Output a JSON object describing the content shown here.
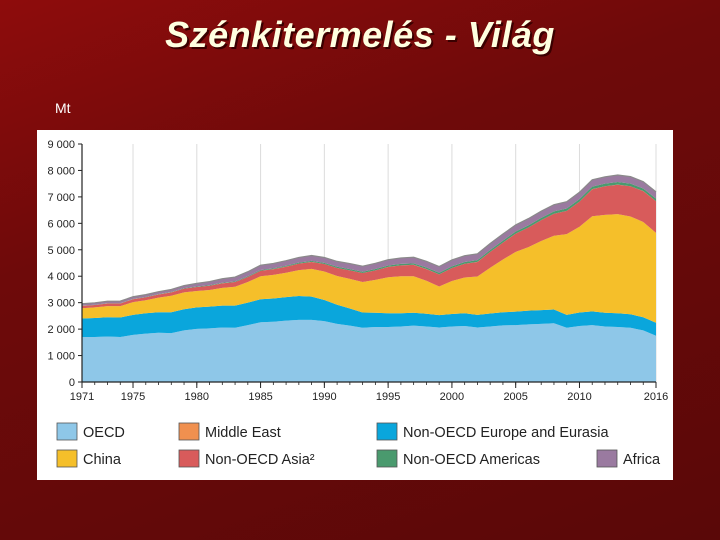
{
  "slide": {
    "title": "Szénkitermelés - Világ",
    "unit": "Mt"
  },
  "chart_data": {
    "type": "area",
    "stacked": true,
    "ylim": [
      0,
      9000
    ],
    "yticks": [
      0,
      1000,
      2000,
      3000,
      4000,
      5000,
      6000,
      7000,
      8000,
      9000
    ],
    "ytick_labels": [
      "0",
      "1 000",
      "2 000",
      "3 000",
      "4 000",
      "5 000",
      "6 000",
      "7 000",
      "8 000",
      "9 000"
    ],
    "xlim": [
      1971,
      2016
    ],
    "xticks": [
      1971,
      1975,
      1980,
      1985,
      1990,
      1995,
      2000,
      2005,
      2010,
      2016
    ],
    "xtick_labels": [
      "1971",
      "1975",
      "1980",
      "1985",
      "1990",
      "1995",
      "2000",
      "2005",
      "2010",
      "2016"
    ],
    "grid": "vertical",
    "legend_position": "bottom",
    "x": [
      1971,
      1972,
      1973,
      1974,
      1975,
      1976,
      1977,
      1978,
      1979,
      1980,
      1981,
      1982,
      1983,
      1984,
      1985,
      1986,
      1987,
      1988,
      1989,
      1990,
      1991,
      1992,
      1993,
      1994,
      1995,
      1996,
      1997,
      1998,
      1999,
      2000,
      2001,
      2002,
      2003,
      2004,
      2005,
      2006,
      2007,
      2008,
      2009,
      2010,
      2011,
      2012,
      2013,
      2014,
      2015,
      2016
    ],
    "series": [
      {
        "name": "OECD",
        "color": "#8ec7e8",
        "values": [
          1700,
          1700,
          1720,
          1700,
          1780,
          1830,
          1860,
          1850,
          1950,
          2010,
          2030,
          2060,
          2050,
          2150,
          2260,
          2280,
          2320,
          2350,
          2350,
          2300,
          2200,
          2130,
          2050,
          2080,
          2080,
          2100,
          2130,
          2100,
          2060,
          2100,
          2120,
          2060,
          2100,
          2140,
          2150,
          2180,
          2200,
          2220,
          2050,
          2120,
          2150,
          2100,
          2080,
          2050,
          1950,
          1750
        ]
      },
      {
        "name": "Non-OECD Europe and Eurasia",
        "color": "#0aa6dc",
        "values": [
          700,
          720,
          730,
          740,
          760,
          770,
          780,
          790,
          800,
          810,
          820,
          830,
          840,
          850,
          870,
          880,
          890,
          900,
          880,
          800,
          720,
          650,
          580,
          540,
          520,
          500,
          490,
          480,
          470,
          470,
          480,
          480,
          490,
          500,
          510,
          520,
          520,
          520,
          490,
          510,
          520,
          520,
          520,
          510,
          500,
          490
        ]
      },
      {
        "name": "China",
        "color": "#f5bf2a",
        "values": [
          390,
          400,
          420,
          430,
          480,
          490,
          550,
          620,
          640,
          620,
          630,
          670,
          710,
          780,
          870,
          890,
          920,
          980,
          1050,
          1080,
          1090,
          1120,
          1150,
          1240,
          1360,
          1400,
          1380,
          1250,
          1080,
          1250,
          1350,
          1450,
          1730,
          1990,
          2260,
          2400,
          2610,
          2790,
          3050,
          3240,
          3600,
          3700,
          3750,
          3700,
          3600,
          3400
        ]
      },
      {
        "name": "Non-OECD Asia²",
        "color": "#d85b5b",
        "values": [
          90,
          90,
          100,
          100,
          110,
          115,
          120,
          130,
          140,
          150,
          160,
          170,
          180,
          190,
          205,
          215,
          230,
          245,
          260,
          280,
          300,
          320,
          340,
          360,
          390,
          410,
          430,
          440,
          460,
          490,
          520,
          550,
          600,
          640,
          690,
          740,
          790,
          830,
          880,
          950,
          1020,
          1080,
          1110,
          1140,
          1170,
          1200
        ]
      },
      {
        "name": "Middle East",
        "color": "#f0904f",
        "values": [
          2,
          2,
          2,
          2,
          2,
          2,
          2,
          2,
          2,
          2,
          2,
          2,
          2,
          2,
          2,
          2,
          2,
          2,
          2,
          2,
          2,
          2,
          2,
          2,
          2,
          2,
          2,
          2,
          2,
          2,
          2,
          2,
          2,
          2,
          2,
          2,
          2,
          2,
          2,
          2,
          2,
          2,
          2,
          2,
          2,
          2
        ]
      },
      {
        "name": "Non-OECD Americas",
        "color": "#4a9a6e",
        "values": [
          10,
          10,
          10,
          12,
          12,
          12,
          14,
          14,
          16,
          18,
          20,
          22,
          25,
          28,
          30,
          32,
          35,
          38,
          40,
          42,
          44,
          46,
          48,
          50,
          52,
          54,
          56,
          58,
          60,
          62,
          64,
          66,
          70,
          74,
          78,
          82,
          86,
          88,
          90,
          92,
          95,
          98,
          100,
          100,
          95,
          92
        ]
      },
      {
        "name": "Africa",
        "color": "#9a7aa0",
        "values": [
          70,
          72,
          74,
          76,
          80,
          85,
          90,
          95,
          100,
          120,
          135,
          150,
          160,
          170,
          180,
          185,
          190,
          195,
          200,
          205,
          205,
          210,
          210,
          215,
          220,
          225,
          230,
          235,
          235,
          240,
          240,
          240,
          245,
          250,
          250,
          255,
          255,
          255,
          255,
          260,
          260,
          260,
          265,
          265,
          260,
          255
        ]
      }
    ],
    "legend": [
      {
        "name": "OECD",
        "color": "#8ec7e8"
      },
      {
        "name": "Middle East",
        "color": "#f0904f"
      },
      {
        "name": "Non-OECD Europe and Eurasia",
        "color": "#0aa6dc"
      },
      {
        "name": "China",
        "color": "#f5bf2a"
      },
      {
        "name": "Non-OECD Asia²",
        "color": "#d85b5b"
      },
      {
        "name": "Non-OECD Americas",
        "color": "#4a9a6e"
      },
      {
        "name": "Africa",
        "color": "#9a7aa0"
      }
    ]
  }
}
